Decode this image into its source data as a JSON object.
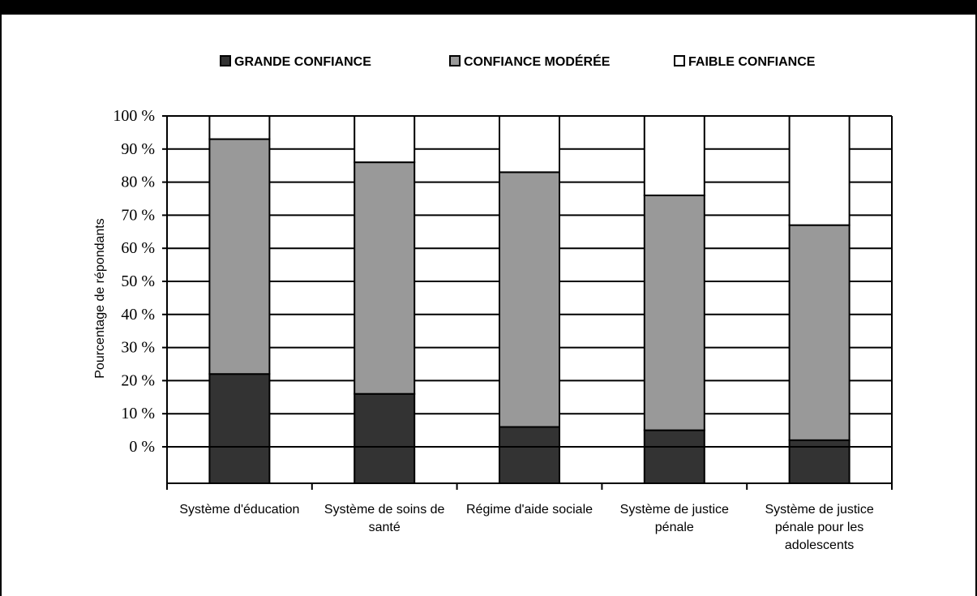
{
  "chart_data": {
    "type": "bar",
    "stacked": true,
    "categories": [
      [
        "Système d'éducation"
      ],
      [
        "Système de soins de",
        "santé"
      ],
      [
        "Régime d'aide sociale"
      ],
      [
        "Système de justice",
        "pénale"
      ],
      [
        "Système de justice",
        "pénale pour les",
        "adolescents"
      ]
    ],
    "series": [
      {
        "name": "GRANDE CONFIANCE",
        "color": "#333333",
        "values": [
          22,
          16,
          6,
          5,
          2
        ]
      },
      {
        "name": "CONFIANCE MODÉRÉE",
        "color": "#999999",
        "values": [
          71,
          70,
          77,
          71,
          65
        ]
      },
      {
        "name": "FAIBLE CONFIANCE",
        "color": "#ffffff",
        "values": [
          7,
          14,
          17,
          24,
          33
        ]
      }
    ],
    "ylabel": "Pourcentage de répondants",
    "yticks": [
      "0 %",
      "10 %",
      "20 %",
      "30 %",
      "40 %",
      "50 %",
      "60 %",
      "70 %",
      "80 %",
      "90 %",
      "100 %"
    ],
    "ylim": [
      0,
      100
    ],
    "grid": true,
    "legend": "top"
  }
}
